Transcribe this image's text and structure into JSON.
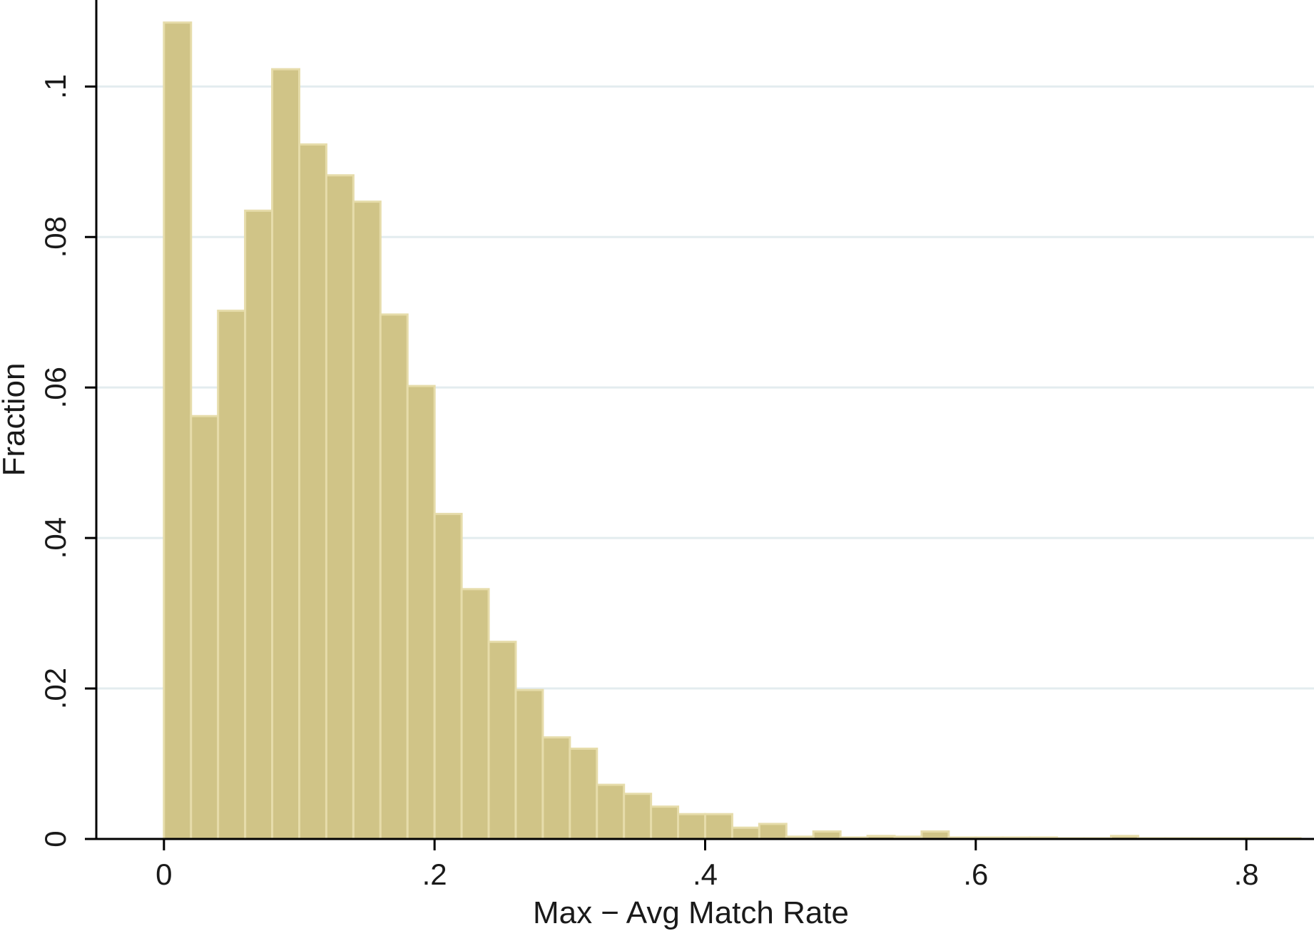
{
  "chart_data": {
    "type": "bar",
    "title": "",
    "xlabel": "Max − Avg Match Rate",
    "ylabel": "Fraction",
    "xlim": [
      -0.05,
      0.85
    ],
    "ylim": [
      0,
      0.1115
    ],
    "bin_width": 0.02,
    "x_ticks": [
      {
        "value": 0,
        "label": "0"
      },
      {
        "value": 0.2,
        "label": ".2"
      },
      {
        "value": 0.4,
        "label": ".4"
      },
      {
        "value": 0.6,
        "label": ".6"
      },
      {
        "value": 0.8,
        "label": ".8"
      }
    ],
    "y_ticks": [
      {
        "value": 0,
        "label": "0"
      },
      {
        "value": 0.02,
        "label": ".02"
      },
      {
        "value": 0.04,
        "label": ".04"
      },
      {
        "value": 0.06,
        "label": ".06"
      },
      {
        "value": 0.08,
        "label": ".08"
      },
      {
        "value": 0.1,
        "label": ".1"
      }
    ],
    "grid": true,
    "bin_starts": [
      0,
      0.02,
      0.04,
      0.06,
      0.08,
      0.1,
      0.12,
      0.14,
      0.16,
      0.18,
      0.2,
      0.22,
      0.24,
      0.26,
      0.28,
      0.3,
      0.32,
      0.34,
      0.36,
      0.38,
      0.4,
      0.42,
      0.44,
      0.46,
      0.48,
      0.5,
      0.52,
      0.54,
      0.56,
      0.58,
      0.6,
      0.62,
      0.64,
      0.66,
      0.68,
      0.7,
      0.72,
      0.74,
      0.76,
      0.78,
      0.8,
      0.82
    ],
    "values": [
      0.1085,
      0.0562,
      0.0702,
      0.0835,
      0.1023,
      0.0923,
      0.0882,
      0.0847,
      0.0697,
      0.0602,
      0.0432,
      0.0332,
      0.0262,
      0.0198,
      0.0135,
      0.012,
      0.0072,
      0.006,
      0.0043,
      0.0033,
      0.0033,
      0.0015,
      0.002,
      0.0003,
      0.001,
      0.0002,
      0.0004,
      0.0003,
      0.001,
      0.0002,
      0.0002,
      0.0002,
      0.0002,
      0.0001,
      0.0001,
      0.0004,
      0.0001,
      0.0001,
      0.0001,
      0.0001,
      0.0001,
      0.0001
    ],
    "colors": {
      "bar_fill": "#d0c487",
      "bar_edge": "#e6dcaa",
      "grid": "#e3ecef",
      "axis": "#000000"
    }
  }
}
